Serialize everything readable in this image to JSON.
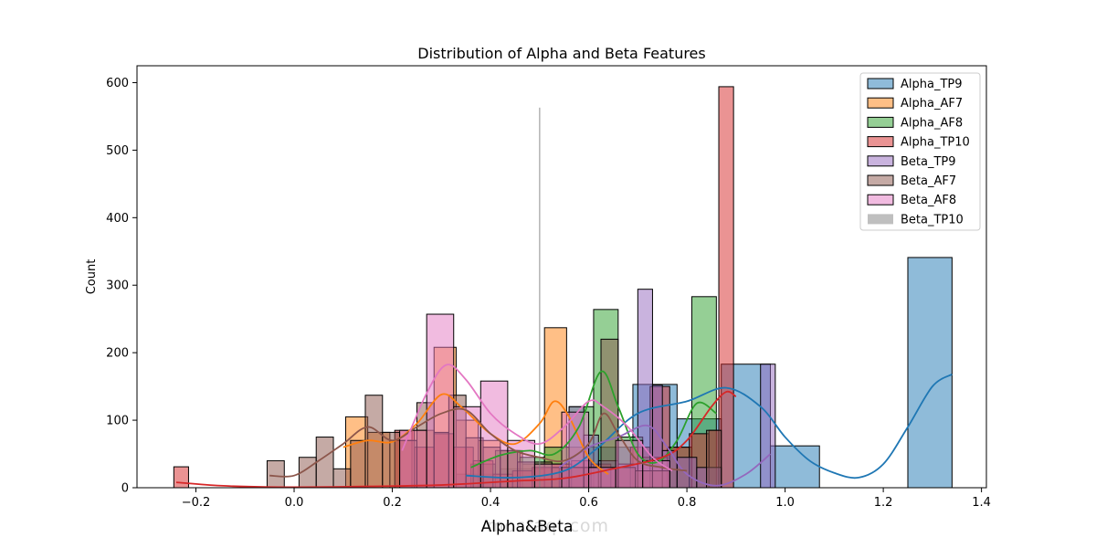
{
  "chart_data": {
    "type": "histogram",
    "title": "Distribution of Alpha and Beta Features",
    "xlabel": "Alpha&Beta",
    "ylabel": "Count",
    "xlim": [
      -0.32,
      1.41
    ],
    "ylim": [
      0,
      625
    ],
    "xticks": [
      -0.2,
      0.0,
      0.2,
      0.4,
      0.6,
      0.8,
      1.0,
      1.2,
      1.4
    ],
    "xtick_labels": [
      "−0.2",
      "0.0",
      "0.2",
      "0.4",
      "0.6",
      "0.8",
      "1.0",
      "1.2",
      "1.4"
    ],
    "yticks": [
      0,
      100,
      200,
      300,
      400,
      500,
      600
    ],
    "ytick_labels": [
      "0",
      "100",
      "200",
      "300",
      "400",
      "500",
      "600"
    ],
    "grid": false,
    "legend_position": "top-right",
    "watermark": "mostaql.com",
    "series": [
      {
        "name": "Alpha_TP9",
        "color": "#1f77b4",
        "bins": [
          {
            "x0": 0.33,
            "x1": 0.42,
            "y": 20
          },
          {
            "x0": 0.42,
            "x1": 0.51,
            "y": 28
          },
          {
            "x0": 0.51,
            "x1": 0.6,
            "y": 30
          },
          {
            "x0": 0.6,
            "x1": 0.69,
            "y": 60
          },
          {
            "x0": 0.69,
            "x1": 0.78,
            "y": 153
          },
          {
            "x0": 0.78,
            "x1": 0.87,
            "y": 102
          },
          {
            "x0": 0.87,
            "x1": 0.97,
            "y": 183
          },
          {
            "x0": 0.97,
            "x1": 1.07,
            "y": 62
          },
          {
            "x0": 1.25,
            "x1": 1.34,
            "y": 341
          }
        ],
        "kde": [
          [
            0.35,
            18
          ],
          [
            0.45,
            15
          ],
          [
            0.55,
            25
          ],
          [
            0.62,
            60
          ],
          [
            0.7,
            110
          ],
          [
            0.8,
            128
          ],
          [
            0.88,
            148
          ],
          [
            0.95,
            120
          ],
          [
            1.0,
            75
          ],
          [
            1.05,
            40
          ],
          [
            1.1,
            22
          ],
          [
            1.15,
            15
          ],
          [
            1.2,
            35
          ],
          [
            1.25,
            90
          ],
          [
            1.3,
            150
          ],
          [
            1.34,
            168
          ]
        ]
      },
      {
        "name": "Alpha_AF7",
        "color": "#ff7f0e",
        "bins": [
          {
            "x0": 0.105,
            "x1": 0.15,
            "y": 105
          },
          {
            "x0": 0.15,
            "x1": 0.195,
            "y": 82
          },
          {
            "x0": 0.195,
            "x1": 0.24,
            "y": 70
          },
          {
            "x0": 0.24,
            "x1": 0.285,
            "y": 85
          },
          {
            "x0": 0.285,
            "x1": 0.33,
            "y": 208
          },
          {
            "x0": 0.33,
            "x1": 0.375,
            "y": 100
          },
          {
            "x0": 0.375,
            "x1": 0.42,
            "y": 70
          },
          {
            "x0": 0.42,
            "x1": 0.465,
            "y": 55
          },
          {
            "x0": 0.465,
            "x1": 0.51,
            "y": 35
          },
          {
            "x0": 0.51,
            "x1": 0.555,
            "y": 237
          },
          {
            "x0": 0.555,
            "x1": 0.6,
            "y": 60
          }
        ],
        "kde": [
          [
            0.1,
            60
          ],
          [
            0.15,
            70
          ],
          [
            0.2,
            68
          ],
          [
            0.25,
            95
          ],
          [
            0.3,
            138
          ],
          [
            0.34,
            120
          ],
          [
            0.4,
            80
          ],
          [
            0.45,
            65
          ],
          [
            0.5,
            95
          ],
          [
            0.53,
            128
          ],
          [
            0.56,
            105
          ],
          [
            0.6,
            45
          ],
          [
            0.64,
            20
          ]
        ]
      },
      {
        "name": "Alpha_AF8",
        "color": "#2ca02c",
        "bins": [
          {
            "x0": 0.36,
            "x1": 0.41,
            "y": 35
          },
          {
            "x0": 0.41,
            "x1": 0.46,
            "y": 55
          },
          {
            "x0": 0.46,
            "x1": 0.51,
            "y": 45
          },
          {
            "x0": 0.51,
            "x1": 0.56,
            "y": 60
          },
          {
            "x0": 0.56,
            "x1": 0.61,
            "y": 120
          },
          {
            "x0": 0.61,
            "x1": 0.66,
            "y": 264
          },
          {
            "x0": 0.66,
            "x1": 0.71,
            "y": 75
          },
          {
            "x0": 0.71,
            "x1": 0.76,
            "y": 45
          },
          {
            "x0": 0.76,
            "x1": 0.81,
            "y": 60
          },
          {
            "x0": 0.81,
            "x1": 0.86,
            "y": 283
          }
        ],
        "kde": [
          [
            0.36,
            30
          ],
          [
            0.42,
            48
          ],
          [
            0.48,
            55
          ],
          [
            0.53,
            50
          ],
          [
            0.58,
            90
          ],
          [
            0.625,
            172
          ],
          [
            0.66,
            120
          ],
          [
            0.7,
            50
          ],
          [
            0.74,
            38
          ],
          [
            0.78,
            70
          ],
          [
            0.82,
            125
          ],
          [
            0.86,
            110
          ]
        ]
      },
      {
        "name": "Alpha_TP10",
        "color": "#d62728",
        "bins": [
          {
            "x0": -0.245,
            "x1": -0.215,
            "y": 31
          },
          {
            "x0": 0.205,
            "x1": 0.245,
            "y": 85
          },
          {
            "x0": 0.245,
            "x1": 0.285,
            "y": 60
          },
          {
            "x0": 0.285,
            "x1": 0.325,
            "y": 80
          },
          {
            "x0": 0.325,
            "x1": 0.365,
            "y": 60
          },
          {
            "x0": 0.365,
            "x1": 0.405,
            "y": 40
          },
          {
            "x0": 0.405,
            "x1": 0.445,
            "y": 20
          },
          {
            "x0": 0.445,
            "x1": 0.485,
            "y": 25
          },
          {
            "x0": 0.485,
            "x1": 0.525,
            "y": 30
          },
          {
            "x0": 0.525,
            "x1": 0.565,
            "y": 35
          },
          {
            "x0": 0.565,
            "x1": 0.605,
            "y": 40
          },
          {
            "x0": 0.605,
            "x1": 0.645,
            "y": 35
          },
          {
            "x0": 0.645,
            "x1": 0.685,
            "y": 30
          },
          {
            "x0": 0.685,
            "x1": 0.725,
            "y": 60
          },
          {
            "x0": 0.725,
            "x1": 0.765,
            "y": 150
          },
          {
            "x0": 0.765,
            "x1": 0.805,
            "y": 60
          },
          {
            "x0": 0.805,
            "x1": 0.845,
            "y": 80
          },
          {
            "x0": 0.845,
            "x1": 0.865,
            "y": 85
          },
          {
            "x0": 0.865,
            "x1": 0.895,
            "y": 594
          }
        ],
        "kde": [
          [
            -0.24,
            8
          ],
          [
            -0.15,
            3
          ],
          [
            -0.05,
            1
          ],
          [
            0.05,
            1
          ],
          [
            0.15,
            2
          ],
          [
            0.3,
            4
          ],
          [
            0.45,
            10
          ],
          [
            0.55,
            14
          ],
          [
            0.65,
            28
          ],
          [
            0.75,
            45
          ],
          [
            0.8,
            70
          ],
          [
            0.85,
            120
          ],
          [
            0.88,
            142
          ],
          [
            0.9,
            135
          ]
        ]
      },
      {
        "name": "Beta_TP9",
        "color": "#9467bd",
        "bins": [
          {
            "x0": 0.54,
            "x1": 0.56,
            "y": 30
          },
          {
            "x0": 0.56,
            "x1": 0.59,
            "y": 120
          },
          {
            "x0": 0.59,
            "x1": 0.62,
            "y": 78
          },
          {
            "x0": 0.62,
            "x1": 0.66,
            "y": 40
          },
          {
            "x0": 0.66,
            "x1": 0.7,
            "y": 35
          },
          {
            "x0": 0.7,
            "x1": 0.73,
            "y": 294
          },
          {
            "x0": 0.73,
            "x1": 0.75,
            "y": 152
          },
          {
            "x0": 0.75,
            "x1": 0.78,
            "y": 55
          },
          {
            "x0": 0.78,
            "x1": 0.82,
            "y": 45
          },
          {
            "x0": 0.82,
            "x1": 0.87,
            "y": 30
          },
          {
            "x0": 0.95,
            "x1": 0.98,
            "y": 183
          }
        ],
        "kde": [
          [
            0.54,
            30
          ],
          [
            0.6,
            60
          ],
          [
            0.66,
            75
          ],
          [
            0.72,
            92
          ],
          [
            0.76,
            60
          ],
          [
            0.8,
            20
          ],
          [
            0.86,
            3
          ],
          [
            0.92,
            20
          ],
          [
            0.97,
            50
          ]
        ]
      },
      {
        "name": "Beta_AF7",
        "color": "#8c564b",
        "bins": [
          {
            "x0": -0.055,
            "x1": -0.02,
            "y": 40
          },
          {
            "x0": 0.01,
            "x1": 0.045,
            "y": 45
          },
          {
            "x0": 0.045,
            "x1": 0.08,
            "y": 75
          },
          {
            "x0": 0.08,
            "x1": 0.115,
            "y": 28
          },
          {
            "x0": 0.115,
            "x1": 0.145,
            "y": 70
          },
          {
            "x0": 0.145,
            "x1": 0.18,
            "y": 137
          },
          {
            "x0": 0.18,
            "x1": 0.215,
            "y": 82
          },
          {
            "x0": 0.215,
            "x1": 0.25,
            "y": 70
          },
          {
            "x0": 0.25,
            "x1": 0.285,
            "y": 126
          },
          {
            "x0": 0.285,
            "x1": 0.315,
            "y": 82
          },
          {
            "x0": 0.315,
            "x1": 0.35,
            "y": 137
          },
          {
            "x0": 0.35,
            "x1": 0.385,
            "y": 74
          },
          {
            "x0": 0.385,
            "x1": 0.42,
            "y": 60
          },
          {
            "x0": 0.42,
            "x1": 0.455,
            "y": 55
          },
          {
            "x0": 0.455,
            "x1": 0.49,
            "y": 38
          },
          {
            "x0": 0.49,
            "x1": 0.525,
            "y": 38
          },
          {
            "x0": 0.525,
            "x1": 0.56,
            "y": 30
          },
          {
            "x0": 0.56,
            "x1": 0.59,
            "y": 30
          },
          {
            "x0": 0.59,
            "x1": 0.625,
            "y": 30
          },
          {
            "x0": 0.625,
            "x1": 0.66,
            "y": 220
          },
          {
            "x0": 0.66,
            "x1": 0.695,
            "y": 30
          },
          {
            "x0": 0.695,
            "x1": 0.73,
            "y": 25
          },
          {
            "x0": 0.73,
            "x1": 0.765,
            "y": 25
          },
          {
            "x0": 0.84,
            "x1": 0.87,
            "y": 85
          }
        ],
        "kde": [
          [
            -0.05,
            18
          ],
          [
            0.0,
            18
          ],
          [
            0.05,
            40
          ],
          [
            0.1,
            65
          ],
          [
            0.15,
            90
          ],
          [
            0.2,
            70
          ],
          [
            0.25,
            90
          ],
          [
            0.3,
            110
          ],
          [
            0.35,
            115
          ],
          [
            0.4,
            80
          ],
          [
            0.45,
            55
          ],
          [
            0.5,
            45
          ],
          [
            0.55,
            40
          ],
          [
            0.6,
            65
          ],
          [
            0.63,
            110
          ],
          [
            0.66,
            80
          ],
          [
            0.7,
            40
          ],
          [
            0.75,
            30
          ],
          [
            0.8,
            25
          ]
        ]
      },
      {
        "name": "Beta_AF8",
        "color": "#e377c2",
        "bins": [
          {
            "x0": 0.215,
            "x1": 0.27,
            "y": 85
          },
          {
            "x0": 0.27,
            "x1": 0.325,
            "y": 257
          },
          {
            "x0": 0.325,
            "x1": 0.38,
            "y": 120
          },
          {
            "x0": 0.38,
            "x1": 0.435,
            "y": 158
          },
          {
            "x0": 0.435,
            "x1": 0.49,
            "y": 70
          },
          {
            "x0": 0.49,
            "x1": 0.545,
            "y": 35
          },
          {
            "x0": 0.545,
            "x1": 0.6,
            "y": 112
          },
          {
            "x0": 0.6,
            "x1": 0.655,
            "y": 30
          },
          {
            "x0": 0.655,
            "x1": 0.71,
            "y": 70
          },
          {
            "x0": 0.71,
            "x1": 0.765,
            "y": 40
          }
        ],
        "kde": [
          [
            0.22,
            55
          ],
          [
            0.27,
            140
          ],
          [
            0.31,
            182
          ],
          [
            0.35,
            160
          ],
          [
            0.4,
            110
          ],
          [
            0.45,
            80
          ],
          [
            0.5,
            65
          ],
          [
            0.55,
            90
          ],
          [
            0.6,
            128
          ],
          [
            0.63,
            120
          ],
          [
            0.68,
            90
          ],
          [
            0.73,
            45
          ],
          [
            0.77,
            25
          ]
        ]
      },
      {
        "name": "Beta_TP10",
        "color": "#7f7f7f",
        "bins": [
          {
            "x0": 0.4985,
            "x1": 0.5015,
            "y": 563
          }
        ],
        "kde": []
      }
    ]
  }
}
